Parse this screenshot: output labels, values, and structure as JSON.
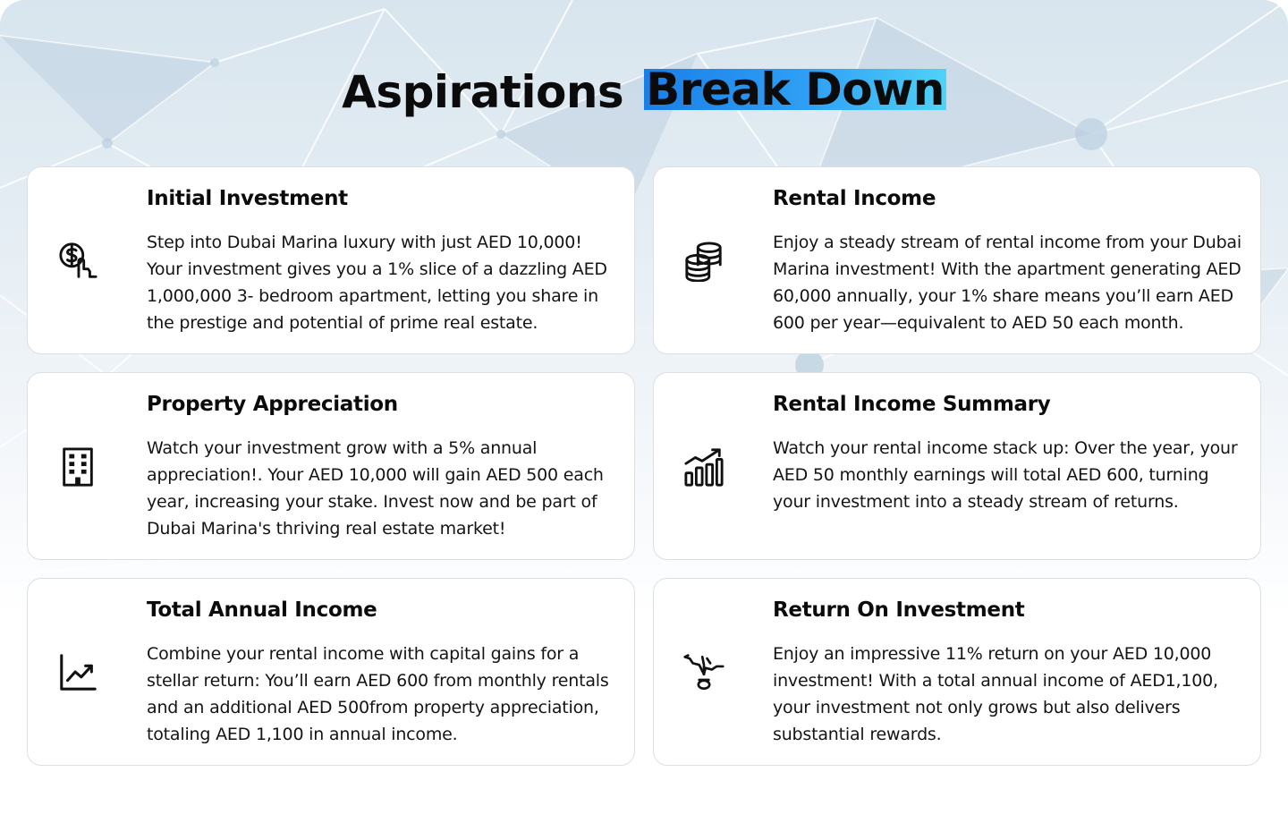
{
  "header": {
    "title_plain": "Aspirations",
    "title_highlight": "Break Down",
    "highlight_color": "#2a93f0"
  },
  "cards": [
    {
      "icon": "dollar-hand-icon",
      "title": "Initial Investment",
      "body": "Step into Dubai Marina luxury with just AED 10,000! Your investment gives you a 1% slice of a dazzling AED 1,000,000 3- bedroom apartment, letting you share in the prestige and potential of prime real estate."
    },
    {
      "icon": "coins-stack-icon",
      "title": "Rental Income",
      "body": "Enjoy a steady stream of rental income from your Dubai Marina investment! With the apartment generating AED 60,000 annually, your 1% share means you’ll earn AED 600 per year—equivalent to AED 50 each month."
    },
    {
      "icon": "building-icon",
      "title": "Property Appreciation",
      "body": "Watch your investment grow with a 5% annual appreciation!. Your AED 10,000 will gain AED 500 each year, increasing your stake. Invest now and be part of Dubai Marina's thriving real estate market!"
    },
    {
      "icon": "bar-chart-growth-icon",
      "title": "Rental Income Summary",
      "body": "Watch your rental income stack up: Over the year, your AED 50 monthly earnings will total AED 600, turning your investment into a steady stream of returns."
    },
    {
      "icon": "trend-line-icon",
      "title": "Total Annual Income",
      "body": "Combine your rental income with capital gains for a stellar return: You’ll earn AED 600 from monthly rentals and an additional AED 500from property appreciation, totaling AED 1,100 in annual income."
    },
    {
      "icon": "roi-arrows-icon",
      "title": "Return On Investment",
      "body": "Enjoy an impressive 11% return on your AED 10,000 investment! With a total annual income of AED1,100, your investment not only grows but also delivers substantial rewards."
    }
  ]
}
